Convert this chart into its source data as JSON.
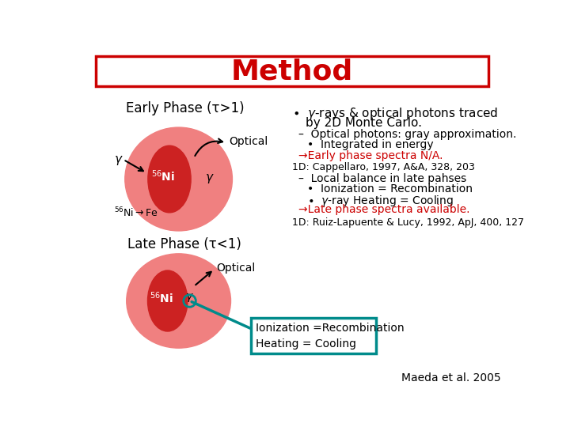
{
  "title": "Method",
  "title_color": "#CC0000",
  "title_fontsize": 26,
  "title_box_color": "#CC0000",
  "bg_color": "#FFFFFF",
  "early_phase_label": "Early Phase (τ>1)",
  "late_phase_label": "Late Phase (τ<1)",
  "outer_ellipse_color": "#F08080",
  "inner_ellipse_color": "#CC2222",
  "red_color": "#CC0000",
  "teal": "#008B8B",
  "black": "#000000",
  "credit": "Maeda et al. 2005"
}
